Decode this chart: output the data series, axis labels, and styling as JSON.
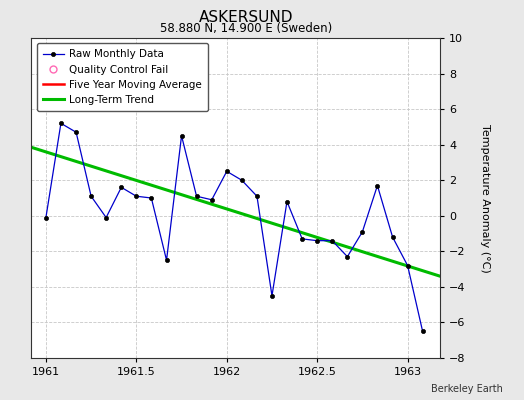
{
  "title": "ASKERSUND",
  "subtitle": "58.880 N, 14.900 E (Sweden)",
  "ylabel": "Temperature Anomaly (°C)",
  "attribution": "Berkeley Earth",
  "ylim": [
    -8,
    10
  ],
  "xlim": [
    1960.92,
    1963.18
  ],
  "xticks": [
    1961,
    1961.5,
    1962,
    1962.5,
    1963
  ],
  "yticks": [
    -8,
    -6,
    -4,
    -2,
    0,
    2,
    4,
    6,
    8,
    10
  ],
  "fig_bg_color": "#e8e8e8",
  "plot_bg_color": "#ffffff",
  "raw_x": [
    1961.0,
    1961.083,
    1961.167,
    1961.25,
    1961.333,
    1961.417,
    1961.5,
    1961.583,
    1961.667,
    1961.75,
    1961.833,
    1961.917,
    1962.0,
    1962.083,
    1962.167,
    1962.25,
    1962.333,
    1962.417,
    1962.5,
    1962.583,
    1962.667,
    1962.75,
    1962.833,
    1962.917,
    1963.0,
    1963.083
  ],
  "raw_y": [
    -0.1,
    5.2,
    4.7,
    1.1,
    -0.1,
    1.6,
    1.1,
    1.0,
    -2.5,
    4.5,
    1.1,
    0.9,
    2.5,
    2.0,
    1.1,
    -4.5,
    0.8,
    -1.3,
    -1.4,
    -1.4,
    -2.3,
    -0.9,
    1.7,
    -1.2,
    -2.8,
    -6.5
  ],
  "trend_x": [
    1960.92,
    1963.18
  ],
  "trend_y": [
    3.85,
    -3.4
  ],
  "raw_color": "#0000cc",
  "trend_color": "#00bb00",
  "ma_color": "#ff0000",
  "qc_color": "#ff69b4",
  "grid_color": "#c8c8c8",
  "title_fontsize": 11,
  "subtitle_fontsize": 8.5,
  "ylabel_fontsize": 8,
  "tick_fontsize": 8,
  "legend_fontsize": 7.5,
  "attribution_fontsize": 7
}
